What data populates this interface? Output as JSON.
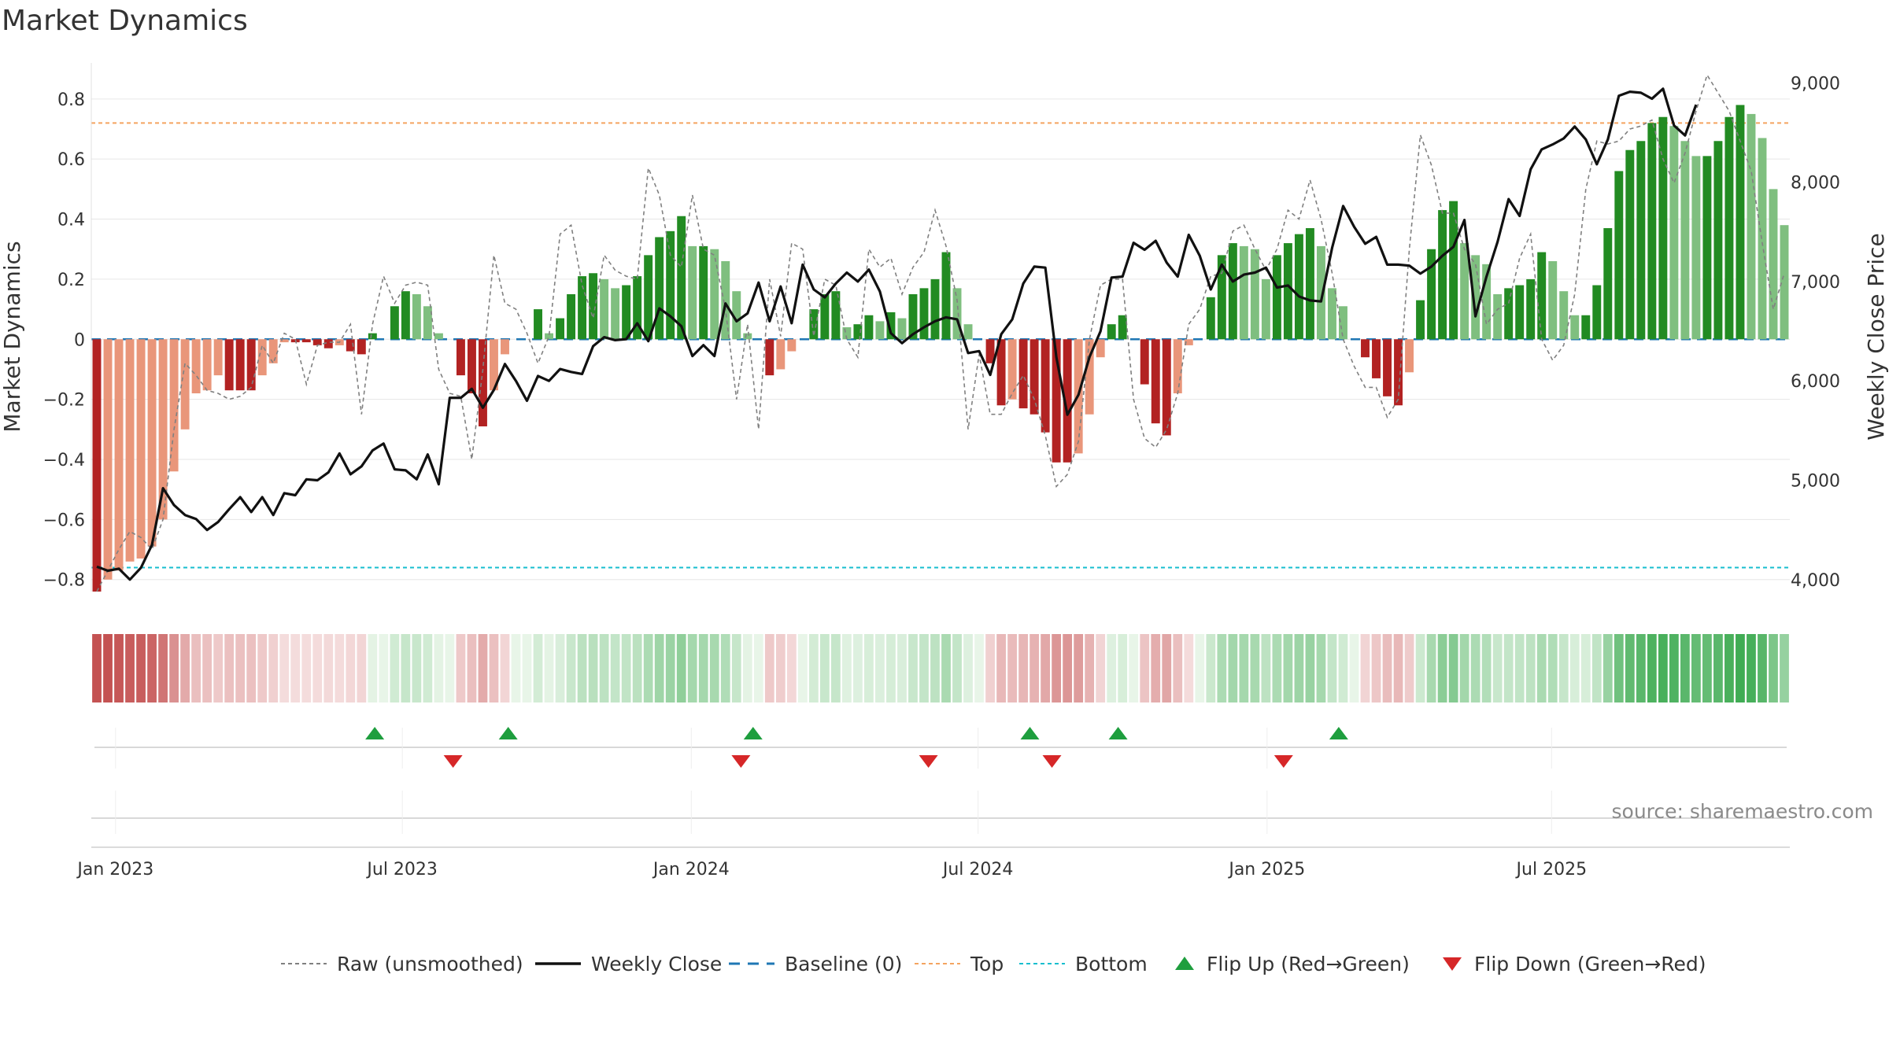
{
  "chart_data": {
    "type": "bar",
    "title": "Market Dynamics",
    "ylabel_left": "Market Dynamics",
    "ylabel_right": "Weekly Close Price",
    "source_text": "source: sharemaestro.com",
    "x_ticks": [
      "Jan 2023",
      "Jul 2023",
      "Jan 2024",
      "Jul 2024",
      "Jan 2025",
      "Jul 2025"
    ],
    "x_tick_weeks": [
      1.7,
      27.7,
      53.9,
      79.9,
      106.1,
      131.9
    ],
    "left_ylim": [
      -0.84,
      0.92
    ],
    "left_ticks": [
      -0.8,
      -0.6,
      -0.4,
      -0.2,
      0,
      0.2,
      0.4,
      0.6,
      0.8
    ],
    "right_ylim": [
      3880,
      9200
    ],
    "right_ticks": [
      4000,
      5000,
      6000,
      7000,
      8000,
      9000
    ],
    "top_level": 0.72,
    "bottom_level": -0.76,
    "colors": {
      "dark_red": "#b22222",
      "light_red": "#e9967a",
      "dark_green": "#228b22",
      "light_green": "#7fbf7f",
      "raw": "#808080",
      "close": "#111111",
      "baseline": "#1f77b4",
      "top": "#f4a460",
      "bottom": "#17becf",
      "flip_up": "#1e9e3e",
      "flip_down": "#d62728",
      "grid": "#e6e6e6"
    },
    "dynamics": [
      -0.84,
      -0.8,
      -0.77,
      -0.74,
      -0.73,
      -0.69,
      -0.6,
      -0.44,
      -0.3,
      -0.18,
      -0.17,
      -0.12,
      -0.17,
      -0.17,
      -0.17,
      -0.12,
      -0.08,
      -0.01,
      -0.01,
      -0.01,
      -0.02,
      -0.03,
      -0.02,
      -0.04,
      -0.05,
      0.02,
      0.0,
      0.11,
      0.16,
      0.15,
      0.11,
      0.02,
      0.0,
      -0.12,
      -0.18,
      -0.29,
      -0.17,
      -0.05,
      0.0,
      0.0,
      0.1,
      0.02,
      0.07,
      0.15,
      0.21,
      0.22,
      0.2,
      0.17,
      0.18,
      0.21,
      0.28,
      0.34,
      0.36,
      0.41,
      0.31,
      0.31,
      0.3,
      0.26,
      0.16,
      0.02,
      0.0,
      -0.12,
      -0.1,
      -0.04,
      0.0,
      0.1,
      0.15,
      0.16,
      0.04,
      0.05,
      0.08,
      0.06,
      0.09,
      0.07,
      0.15,
      0.17,
      0.2,
      0.29,
      0.17,
      0.05,
      0.0,
      -0.08,
      -0.22,
      -0.2,
      -0.23,
      -0.25,
      -0.31,
      -0.41,
      -0.41,
      -0.38,
      -0.25,
      -0.06,
      0.05,
      0.08,
      0.0,
      -0.15,
      -0.28,
      -0.32,
      -0.18,
      -0.02,
      0.0,
      0.14,
      0.28,
      0.32,
      0.31,
      0.3,
      0.2,
      0.28,
      0.32,
      0.35,
      0.37,
      0.31,
      0.17,
      0.11,
      0.0,
      -0.06,
      -0.13,
      -0.19,
      -0.22,
      -0.11,
      0.13,
      0.3,
      0.43,
      0.46,
      0.32,
      0.28,
      0.25,
      0.15,
      0.17,
      0.18,
      0.2,
      0.29,
      0.26,
      0.16,
      0.08,
      0.08,
      0.18,
      0.37,
      0.56,
      0.63,
      0.66,
      0.72,
      0.74,
      0.71,
      0.66,
      0.61,
      0.61,
      0.66,
      0.74,
      0.78,
      0.75,
      0.67,
      0.5,
      0.38
    ],
    "raw": [
      -0.84,
      -0.77,
      -0.7,
      -0.64,
      -0.66,
      -0.7,
      -0.6,
      -0.3,
      -0.08,
      -0.12,
      -0.17,
      -0.18,
      -0.2,
      -0.19,
      -0.16,
      -0.02,
      -0.08,
      0.02,
      0.0,
      -0.15,
      -0.02,
      -0.01,
      -0.01,
      0.05,
      -0.25,
      0.05,
      0.21,
      0.12,
      0.18,
      0.19,
      0.18,
      -0.1,
      -0.18,
      -0.19,
      -0.4,
      -0.1,
      0.28,
      0.12,
      0.1,
      0.02,
      -0.08,
      0.01,
      0.35,
      0.38,
      0.18,
      0.07,
      0.28,
      0.23,
      0.21,
      0.2,
      0.57,
      0.48,
      0.28,
      0.24,
      0.48,
      0.3,
      0.28,
      0.1,
      -0.2,
      0.05,
      -0.3,
      0.2,
      0.01,
      0.32,
      0.3,
      0.01,
      0.2,
      0.18,
      0.0,
      -0.06,
      0.3,
      0.24,
      0.27,
      0.15,
      0.24,
      0.29,
      0.43,
      0.31,
      0.13,
      -0.3,
      -0.05,
      -0.25,
      -0.25,
      -0.18,
      -0.12,
      -0.2,
      -0.32,
      -0.49,
      -0.45,
      -0.34,
      0.0,
      0.18,
      0.2,
      0.2,
      -0.2,
      -0.33,
      -0.36,
      -0.3,
      -0.18,
      0.05,
      0.1,
      0.21,
      0.22,
      0.36,
      0.38,
      0.3,
      0.23,
      0.3,
      0.43,
      0.4,
      0.53,
      0.4,
      0.22,
      0.0,
      -0.09,
      -0.16,
      -0.16,
      -0.26,
      -0.2,
      0.3,
      0.68,
      0.58,
      0.42,
      0.42,
      0.3,
      0.25,
      0.05,
      0.1,
      0.12,
      0.27,
      0.35,
      0.0,
      -0.07,
      -0.02,
      0.15,
      0.5,
      0.66,
      0.65,
      0.66,
      0.7,
      0.71,
      0.73,
      0.6,
      0.52,
      0.62,
      0.76,
      0.88,
      0.82,
      0.76,
      0.66,
      0.56,
      0.32,
      0.1,
      0.22
    ],
    "close": [
      4130,
      4090,
      4110,
      4000,
      4120,
      4350,
      4920,
      4750,
      4650,
      4610,
      4500,
      4580,
      4710,
      4830,
      4680,
      4830,
      4650,
      4870,
      4850,
      5010,
      5000,
      5080,
      5270,
      5060,
      5140,
      5300,
      5370,
      5110,
      5100,
      5010,
      5260,
      4960,
      5830,
      5830,
      5920,
      5730,
      5910,
      6170,
      6000,
      5800,
      6050,
      6000,
      6120,
      6090,
      6070,
      6350,
      6440,
      6410,
      6420,
      6580,
      6400,
      6730,
      6650,
      6550,
      6250,
      6360,
      6250,
      6780,
      6600,
      6680,
      6990,
      6600,
      6950,
      6580,
      7170,
      6920,
      6840,
      6980,
      7090,
      7000,
      7120,
      6900,
      6480,
      6380,
      6470,
      6540,
      6600,
      6640,
      6620,
      6280,
      6300,
      6060,
      6470,
      6620,
      6980,
      7150,
      7140,
      6240,
      5660,
      5860,
      6240,
      6500,
      7040,
      7050,
      7390,
      7320,
      7410,
      7190,
      7050,
      7470,
      7260,
      6920,
      7170,
      7000,
      7070,
      7090,
      7140,
      6940,
      6960,
      6850,
      6810,
      6800,
      7340,
      7760,
      7550,
      7380,
      7450,
      7170,
      7170,
      7160,
      7080,
      7150,
      7260,
      7350,
      7620,
      6650,
      7050,
      7400,
      7830,
      7660,
      8130,
      8330,
      8380,
      8440,
      8560,
      8430,
      8180,
      8430,
      8870,
      8910,
      8900,
      8840,
      8940,
      8570,
      8470,
      8780
    ],
    "flips_up": [
      25.2,
      37.3,
      59.5,
      84.6,
      92.6,
      112.6
    ],
    "flips_down": [
      32.3,
      58.4,
      75.4,
      86.6,
      107.6
    ]
  },
  "legend": {
    "raw": "Raw (unsmoothed)",
    "close": "Weekly Close",
    "baseline": "Baseline (0)",
    "top": "Top",
    "bottom": "Bottom",
    "flip_up": "Flip Up (Red→Green)",
    "flip_down": "Flip Down (Green→Red)"
  }
}
